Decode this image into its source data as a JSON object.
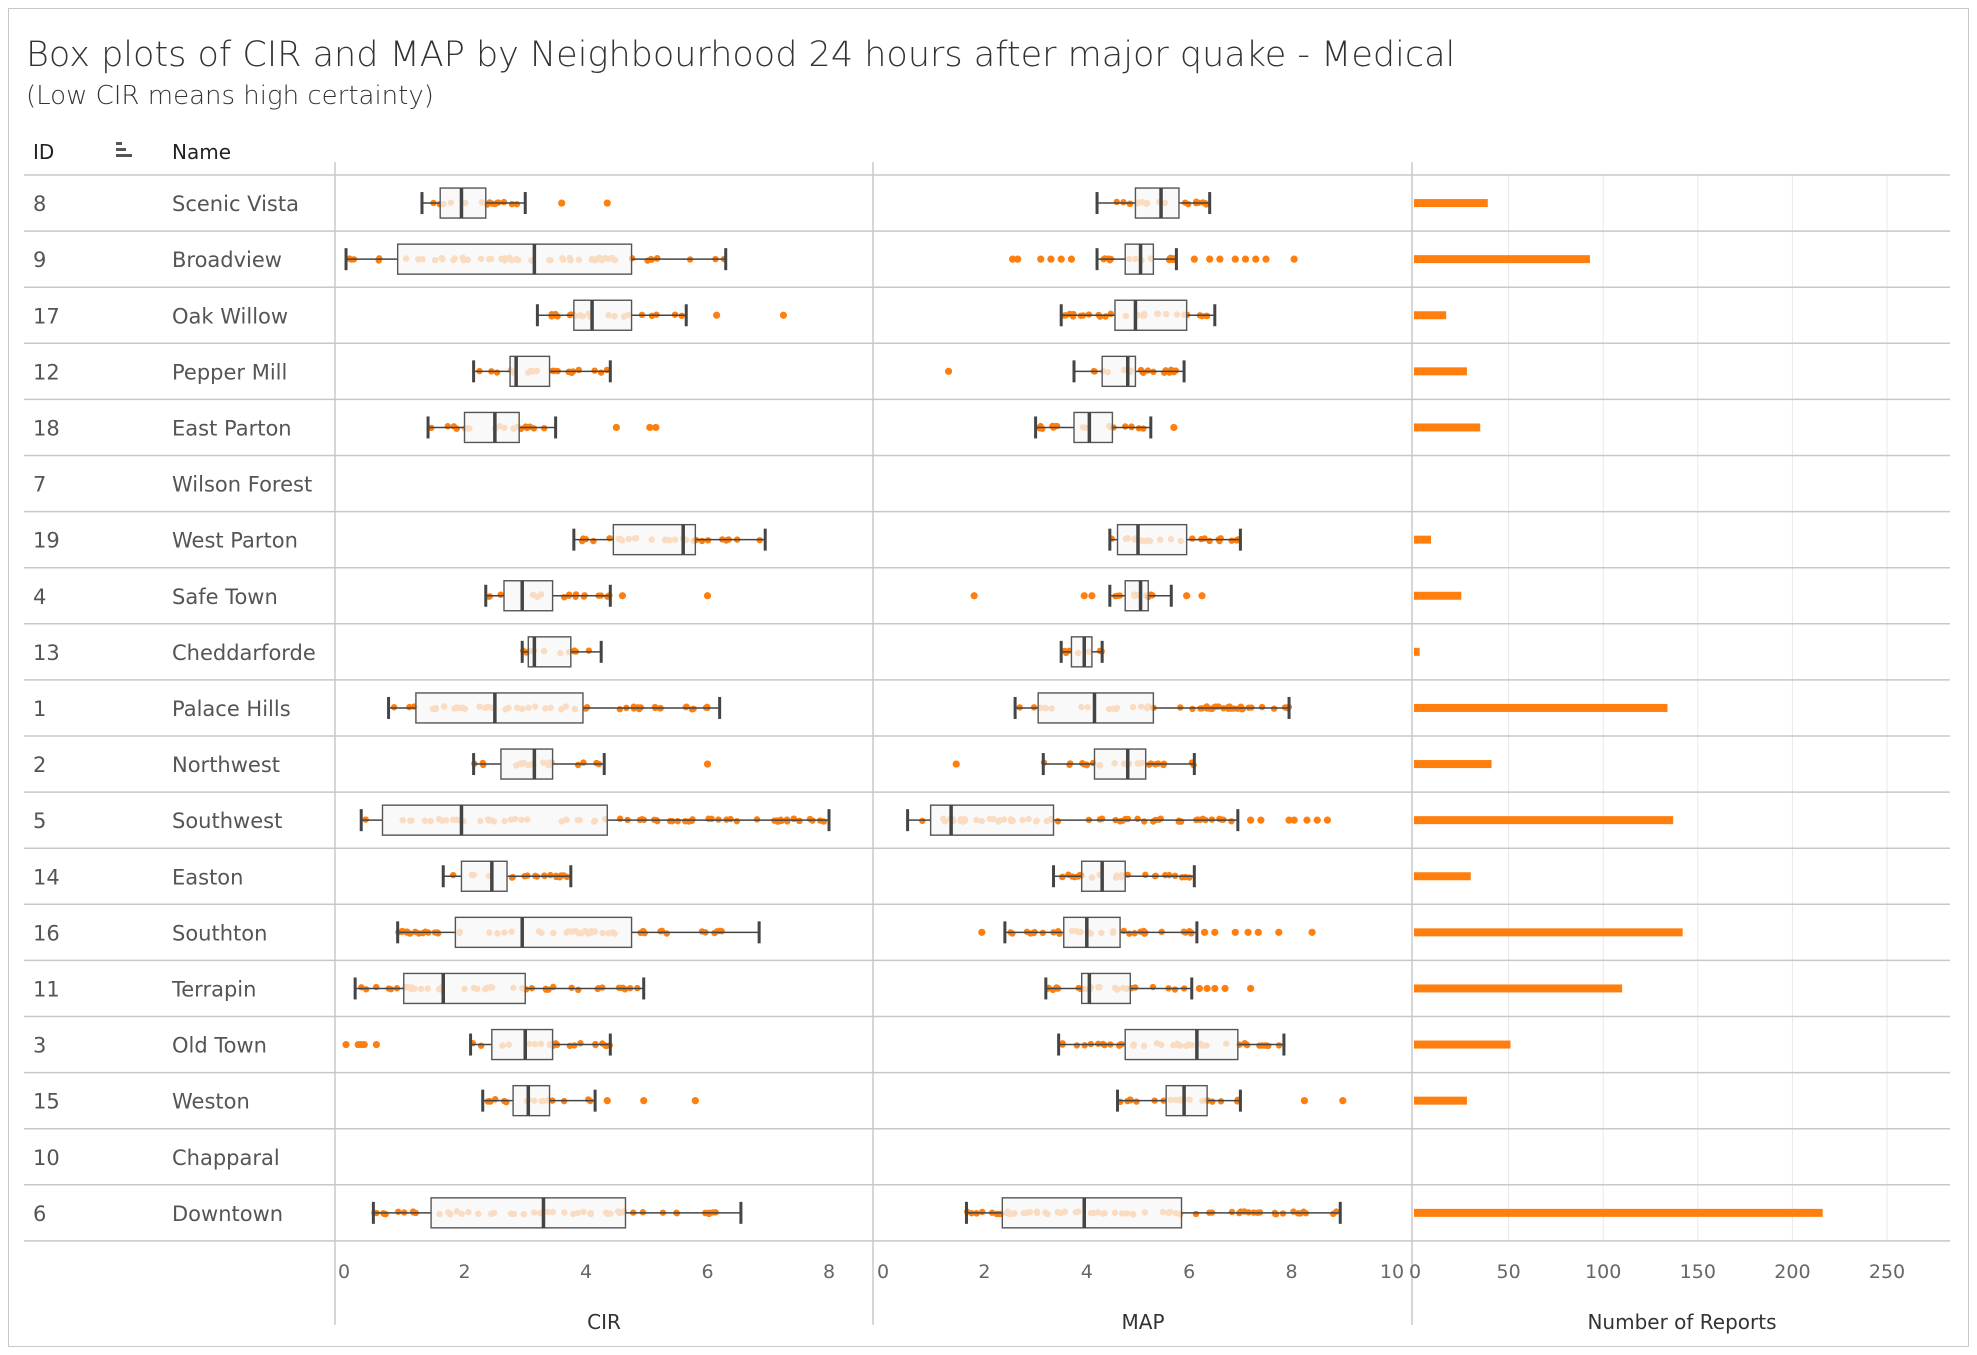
{
  "title": "Box plots of CIR and MAP by Neighbourhood 24 hours after major quake - Medical",
  "subtitle": "(Low CIR means high certainty)",
  "headers": {
    "id": "ID",
    "name": "Name",
    "sort_icon": "sort-descending-icon"
  },
  "colors": {
    "point_dark": "#ff7f0e",
    "point_light": "#ffbf86",
    "box_fill": "#f4f4f4",
    "whisker": "#444444",
    "bar": "#ff7f0e",
    "grid": "#e8e8e8",
    "divider": "#c8c8c8"
  },
  "chart_data": [
    {
      "type": "box",
      "xlabel": "CIR",
      "xlim": [
        0,
        8
      ],
      "ticks": [
        "0",
        "2",
        "4",
        "6",
        "8"
      ],
      "series": [
        {
          "id": "8",
          "name": "Scenic Vista",
          "whisker_low": 1.3,
          "q1": 1.6,
          "median": 1.95,
          "q3": 2.35,
          "whisker_high": 3.0,
          "outliers": [
            3.6,
            4.35
          ]
        },
        {
          "id": "9",
          "name": "Broadview",
          "whisker_low": 0.05,
          "q1": 0.9,
          "median": 3.15,
          "q3": 4.75,
          "whisker_high": 6.3,
          "outliers": []
        },
        {
          "id": "17",
          "name": "Oak Willow",
          "whisker_low": 3.2,
          "q1": 3.8,
          "median": 4.1,
          "q3": 4.75,
          "whisker_high": 5.65,
          "outliers": [
            6.15,
            7.25
          ]
        },
        {
          "id": "12",
          "name": "Pepper Mill",
          "whisker_low": 2.15,
          "q1": 2.75,
          "median": 2.85,
          "q3": 3.4,
          "whisker_high": 4.4,
          "outliers": []
        },
        {
          "id": "18",
          "name": "East Parton",
          "whisker_low": 1.4,
          "q1": 2.0,
          "median": 2.5,
          "q3": 2.9,
          "whisker_high": 3.5,
          "outliers": [
            4.5,
            5.05,
            5.15
          ]
        },
        {
          "id": "7",
          "name": "Wilson Forest",
          "whisker_low": null,
          "q1": null,
          "median": null,
          "q3": null,
          "whisker_high": null,
          "outliers": []
        },
        {
          "id": "19",
          "name": "West Parton",
          "whisker_low": 3.8,
          "q1": 4.45,
          "median": 5.6,
          "q3": 5.8,
          "whisker_high": 6.95,
          "outliers": []
        },
        {
          "id": "4",
          "name": "Safe Town",
          "whisker_low": 2.35,
          "q1": 2.65,
          "median": 2.95,
          "q3": 3.45,
          "whisker_high": 4.4,
          "outliers": [
            4.6,
            6.0
          ]
        },
        {
          "id": "13",
          "name": "Cheddarforde",
          "whisker_low": 2.95,
          "q1": 3.05,
          "median": 3.15,
          "q3": 3.75,
          "whisker_high": 4.25,
          "outliers": []
        },
        {
          "id": "1",
          "name": "Palace Hills",
          "whisker_low": 0.75,
          "q1": 1.2,
          "median": 2.5,
          "q3": 3.95,
          "whisker_high": 6.2,
          "outliers": []
        },
        {
          "id": "2",
          "name": "Northwest",
          "whisker_low": 2.15,
          "q1": 2.6,
          "median": 3.15,
          "q3": 3.45,
          "whisker_high": 4.3,
          "outliers": [
            6.0
          ]
        },
        {
          "id": "5",
          "name": "Southwest",
          "whisker_low": 0.3,
          "q1": 0.65,
          "median": 1.95,
          "q3": 4.35,
          "whisker_high": 8.0,
          "outliers": []
        },
        {
          "id": "14",
          "name": "Easton",
          "whisker_low": 1.65,
          "q1": 1.95,
          "median": 2.45,
          "q3": 2.7,
          "whisker_high": 3.75,
          "outliers": []
        },
        {
          "id": "16",
          "name": "Southton",
          "whisker_low": 0.9,
          "q1": 1.85,
          "median": 2.95,
          "q3": 4.75,
          "whisker_high": 6.85,
          "outliers": []
        },
        {
          "id": "11",
          "name": "Terrapin",
          "whisker_low": 0.2,
          "q1": 1.0,
          "median": 1.65,
          "q3": 3.0,
          "whisker_high": 4.95,
          "outliers": []
        },
        {
          "id": "3",
          "name": "Old Town",
          "whisker_low": 2.1,
          "q1": 2.45,
          "median": 3.0,
          "q3": 3.45,
          "whisker_high": 4.4,
          "outliers": [
            0.05,
            0.25,
            0.3,
            0.35,
            0.55
          ]
        },
        {
          "id": "15",
          "name": "Weston",
          "whisker_low": 2.3,
          "q1": 2.8,
          "median": 3.05,
          "q3": 3.4,
          "whisker_high": 4.15,
          "outliers": [
            4.35,
            4.95,
            5.8
          ]
        },
        {
          "id": "10",
          "name": "Chapparal",
          "whisker_low": null,
          "q1": null,
          "median": null,
          "q3": null,
          "whisker_high": null,
          "outliers": []
        },
        {
          "id": "6",
          "name": "Downtown",
          "whisker_low": 0.5,
          "q1": 1.45,
          "median": 3.3,
          "q3": 4.65,
          "whisker_high": 6.55,
          "outliers": []
        }
      ]
    },
    {
      "type": "box",
      "xlabel": "MAP",
      "xlim": [
        0,
        10
      ],
      "ticks": [
        "0",
        "2",
        "4",
        "6",
        "8",
        "10"
      ],
      "series": [
        {
          "id": "8",
          "name": "Scenic Vista",
          "whisker_low": 4.2,
          "q1": 4.95,
          "median": 5.45,
          "q3": 5.8,
          "whisker_high": 6.4,
          "outliers": []
        },
        {
          "id": "9",
          "name": "Broadview",
          "whisker_low": 4.2,
          "q1": 4.75,
          "median": 5.05,
          "q3": 5.3,
          "whisker_high": 5.75,
          "outliers": [
            2.55,
            2.65,
            3.1,
            3.3,
            3.5,
            3.7,
            6.1,
            6.4,
            6.6,
            6.9,
            7.1,
            7.3,
            7.5,
            8.05
          ]
        },
        {
          "id": "17",
          "name": "Oak Willow",
          "whisker_low": 3.5,
          "q1": 4.55,
          "median": 4.95,
          "q3": 5.95,
          "whisker_high": 6.5,
          "outliers": []
        },
        {
          "id": "12",
          "name": "Pepper Mill",
          "whisker_low": 3.75,
          "q1": 4.3,
          "median": 4.8,
          "q3": 4.95,
          "whisker_high": 5.9,
          "outliers": [
            1.3
          ]
        },
        {
          "id": "18",
          "name": "East Parton",
          "whisker_low": 3.0,
          "q1": 3.75,
          "median": 4.05,
          "q3": 4.5,
          "whisker_high": 5.25,
          "outliers": [
            5.7
          ]
        },
        {
          "id": "7",
          "name": "Wilson Forest",
          "whisker_low": null,
          "q1": null,
          "median": null,
          "q3": null,
          "whisker_high": null,
          "outliers": []
        },
        {
          "id": "19",
          "name": "West Parton",
          "whisker_low": 4.45,
          "q1": 4.6,
          "median": 5.0,
          "q3": 5.95,
          "whisker_high": 7.0,
          "outliers": []
        },
        {
          "id": "4",
          "name": "Safe Town",
          "whisker_low": 4.45,
          "q1": 4.75,
          "median": 5.05,
          "q3": 5.2,
          "whisker_high": 5.65,
          "outliers": [
            1.8,
            3.95,
            4.1,
            5.95,
            6.25
          ]
        },
        {
          "id": "13",
          "name": "Cheddarforde",
          "whisker_low": 3.5,
          "q1": 3.7,
          "median": 3.95,
          "q3": 4.1,
          "whisker_high": 4.3,
          "outliers": []
        },
        {
          "id": "1",
          "name": "Palace Hills",
          "whisker_low": 2.6,
          "q1": 3.05,
          "median": 4.15,
          "q3": 5.3,
          "whisker_high": 7.95,
          "outliers": []
        },
        {
          "id": "2",
          "name": "Northwest",
          "whisker_low": 3.15,
          "q1": 4.15,
          "median": 4.8,
          "q3": 5.15,
          "whisker_high": 6.1,
          "outliers": [
            1.45
          ]
        },
        {
          "id": "5",
          "name": "Southwest",
          "whisker_low": 0.5,
          "q1": 0.95,
          "median": 1.35,
          "q3": 3.35,
          "whisker_high": 6.95,
          "outliers": [
            7.2,
            7.4,
            7.95,
            8.05,
            8.3,
            8.5,
            8.7
          ]
        },
        {
          "id": "14",
          "name": "Easton",
          "whisker_low": 3.35,
          "q1": 3.9,
          "median": 4.3,
          "q3": 4.75,
          "whisker_high": 6.1,
          "outliers": []
        },
        {
          "id": "16",
          "name": "Southton",
          "whisker_low": 2.4,
          "q1": 3.55,
          "median": 4.0,
          "q3": 4.65,
          "whisker_high": 6.15,
          "outliers": [
            1.95,
            6.3,
            6.5,
            6.9,
            7.15,
            7.35,
            7.75,
            8.4
          ]
        },
        {
          "id": "11",
          "name": "Terrapin",
          "whisker_low": 3.2,
          "q1": 3.9,
          "median": 4.05,
          "q3": 4.85,
          "whisker_high": 6.05,
          "outliers": [
            6.2,
            6.35,
            6.5,
            6.7,
            7.2
          ]
        },
        {
          "id": "3",
          "name": "Old Town",
          "whisker_low": 3.45,
          "q1": 4.75,
          "median": 6.15,
          "q3": 6.95,
          "whisker_high": 7.85,
          "outliers": []
        },
        {
          "id": "15",
          "name": "Weston",
          "whisker_low": 4.6,
          "q1": 5.55,
          "median": 5.9,
          "q3": 6.35,
          "whisker_high": 7.0,
          "outliers": [
            8.25,
            9.0
          ]
        },
        {
          "id": "10",
          "name": "Chapparal",
          "whisker_low": null,
          "q1": null,
          "median": null,
          "q3": null,
          "whisker_high": null,
          "outliers": []
        },
        {
          "id": "6",
          "name": "Downtown",
          "whisker_low": 1.65,
          "q1": 2.35,
          "median": 3.95,
          "q3": 5.85,
          "whisker_high": 8.95,
          "outliers": []
        }
      ]
    },
    {
      "type": "bar",
      "xlabel": "Number of Reports",
      "xlim": [
        0,
        260
      ],
      "ticks": [
        "0",
        "50",
        "100",
        "150",
        "200",
        "250"
      ],
      "categories": [
        "Scenic Vista",
        "Broadview",
        "Oak Willow",
        "Pepper Mill",
        "East Parton",
        "Wilson Forest",
        "West Parton",
        "Safe Town",
        "Cheddarforde",
        "Palace Hills",
        "Northwest",
        "Southwest",
        "Easton",
        "Southton",
        "Terrapin",
        "Old Town",
        "Weston",
        "Chapparal",
        "Downtown"
      ],
      "values": [
        39,
        93,
        17,
        28,
        35,
        0,
        9,
        25,
        3,
        134,
        41,
        137,
        30,
        142,
        110,
        51,
        28,
        0,
        216
      ]
    }
  ]
}
